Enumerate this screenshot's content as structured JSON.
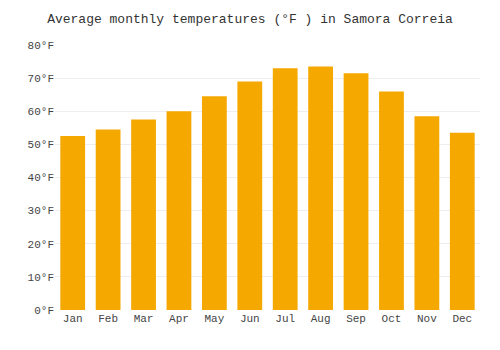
{
  "chart_data": {
    "type": "bar",
    "title": "Average monthly temperatures (°F ) in Samora Correia",
    "categories": [
      "Jan",
      "Feb",
      "Mar",
      "Apr",
      "May",
      "Jun",
      "Jul",
      "Aug",
      "Sep",
      "Oct",
      "Nov",
      "Dec"
    ],
    "values": [
      52.5,
      54.5,
      57.5,
      60.0,
      64.5,
      69.0,
      73.0,
      73.5,
      71.5,
      66.0,
      58.5,
      53.5
    ],
    "color": "#F5A800",
    "ylim": [
      0,
      80
    ],
    "yticks": [
      {
        "value": 0,
        "label": "0°F"
      },
      {
        "value": 10,
        "label": "10°F"
      },
      {
        "value": 20,
        "label": "20°F"
      },
      {
        "value": 30,
        "label": "30°F"
      },
      {
        "value": 40,
        "label": "40°F"
      },
      {
        "value": 50,
        "label": "50°F"
      },
      {
        "value": 60,
        "label": "60°F"
      },
      {
        "value": 70,
        "label": "70°F"
      },
      {
        "value": 80,
        "label": "80°F"
      }
    ],
    "grid": true
  }
}
